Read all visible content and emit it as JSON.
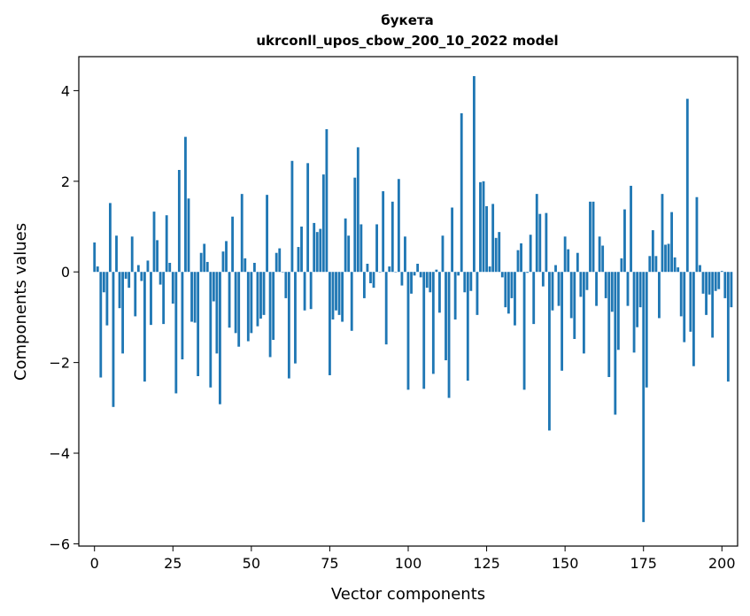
{
  "chart_data": {
    "type": "bar",
    "title_line1": "букета",
    "title_line2": "ukrconll_upos_cbow_200_10_2022 model",
    "xlabel": "Vector components",
    "ylabel": "Components values",
    "xlim": [
      -5,
      205
    ],
    "ylim": [
      -6.05,
      4.75
    ],
    "xticks": [
      0,
      25,
      50,
      75,
      100,
      125,
      150,
      175,
      200
    ],
    "xtick_labels": [
      "0",
      "25",
      "50",
      "75",
      "100",
      "125",
      "150",
      "175",
      "200"
    ],
    "yticks": [
      -6,
      -4,
      -2,
      0,
      2,
      4
    ],
    "ytick_labels": [
      "−6",
      "−4",
      "−2",
      "0",
      "2",
      "4"
    ],
    "bar_color": "#1f77b4",
    "grid": false,
    "values": [
      0.65,
      0.12,
      -2.33,
      -0.45,
      -1.18,
      1.52,
      -2.98,
      0.8,
      -0.8,
      -1.8,
      -0.15,
      -0.35,
      0.78,
      -0.98,
      0.15,
      -0.2,
      -2.42,
      0.25,
      -1.17,
      1.33,
      0.7,
      -0.28,
      -1.15,
      1.25,
      0.2,
      -0.7,
      -2.68,
      2.25,
      -1.93,
      2.98,
      1.62,
      -1.1,
      -1.12,
      -2.3,
      0.42,
      0.62,
      0.22,
      -2.55,
      -0.65,
      -1.8,
      -2.92,
      0.45,
      0.68,
      -1.23,
      1.22,
      -1.35,
      -1.65,
      1.72,
      0.3,
      -1.53,
      -1.35,
      0.2,
      -1.2,
      -1.03,
      -0.95,
      1.7,
      -1.88,
      -1.5,
      0.42,
      0.52,
      0.0,
      -0.58,
      -2.35,
      2.45,
      -2.02,
      0.55,
      1.0,
      -0.85,
      2.4,
      -0.82,
      1.08,
      0.88,
      0.95,
      2.15,
      3.15,
      -2.28,
      -1.05,
      -0.85,
      -0.95,
      -1.1,
      1.18,
      0.8,
      -1.3,
      2.08,
      2.75,
      1.05,
      -0.58,
      0.18,
      -0.25,
      -0.35,
      1.05,
      0.0,
      1.78,
      -1.6,
      0.12,
      1.55,
      0.0,
      2.05,
      -0.3,
      0.78,
      -2.6,
      -0.48,
      -0.08,
      0.18,
      -0.12,
      -2.58,
      -0.35,
      -0.45,
      -2.25,
      0.05,
      -0.9,
      0.8,
      -1.95,
      -2.78,
      1.42,
      -1.05,
      -0.08,
      3.5,
      -0.45,
      -2.4,
      -0.42,
      4.32,
      -0.95,
      1.98,
      2.0,
      1.45,
      0.12,
      1.5,
      0.75,
      0.88,
      -0.12,
      -0.78,
      -0.92,
      -0.58,
      -1.18,
      0.48,
      0.63,
      -2.6,
      -0.02,
      0.82,
      -1.15,
      1.72,
      1.28,
      -0.32,
      1.3,
      -3.5,
      -0.85,
      0.15,
      -0.75,
      -2.18,
      0.78,
      0.5,
      -1.02,
      -1.48,
      0.42,
      -0.55,
      -1.8,
      -0.4,
      1.55,
      1.55,
      -0.75,
      0.78,
      0.58,
      -0.58,
      -2.32,
      -0.88,
      -3.15,
      -1.72,
      0.3,
      1.38,
      -0.75,
      1.9,
      -1.78,
      -1.22,
      -0.78,
      -5.52,
      -2.55,
      0.35,
      0.92,
      0.35,
      -1.02,
      1.72,
      0.6,
      0.62,
      1.32,
      0.32,
      0.1,
      -0.98,
      -1.55,
      3.82,
      -1.32,
      -2.08,
      1.65,
      0.15,
      -0.48,
      -0.95,
      -0.5,
      -1.45,
      -0.42,
      -0.38,
      0.02,
      -0.58,
      -2.42,
      -0.78
    ]
  }
}
